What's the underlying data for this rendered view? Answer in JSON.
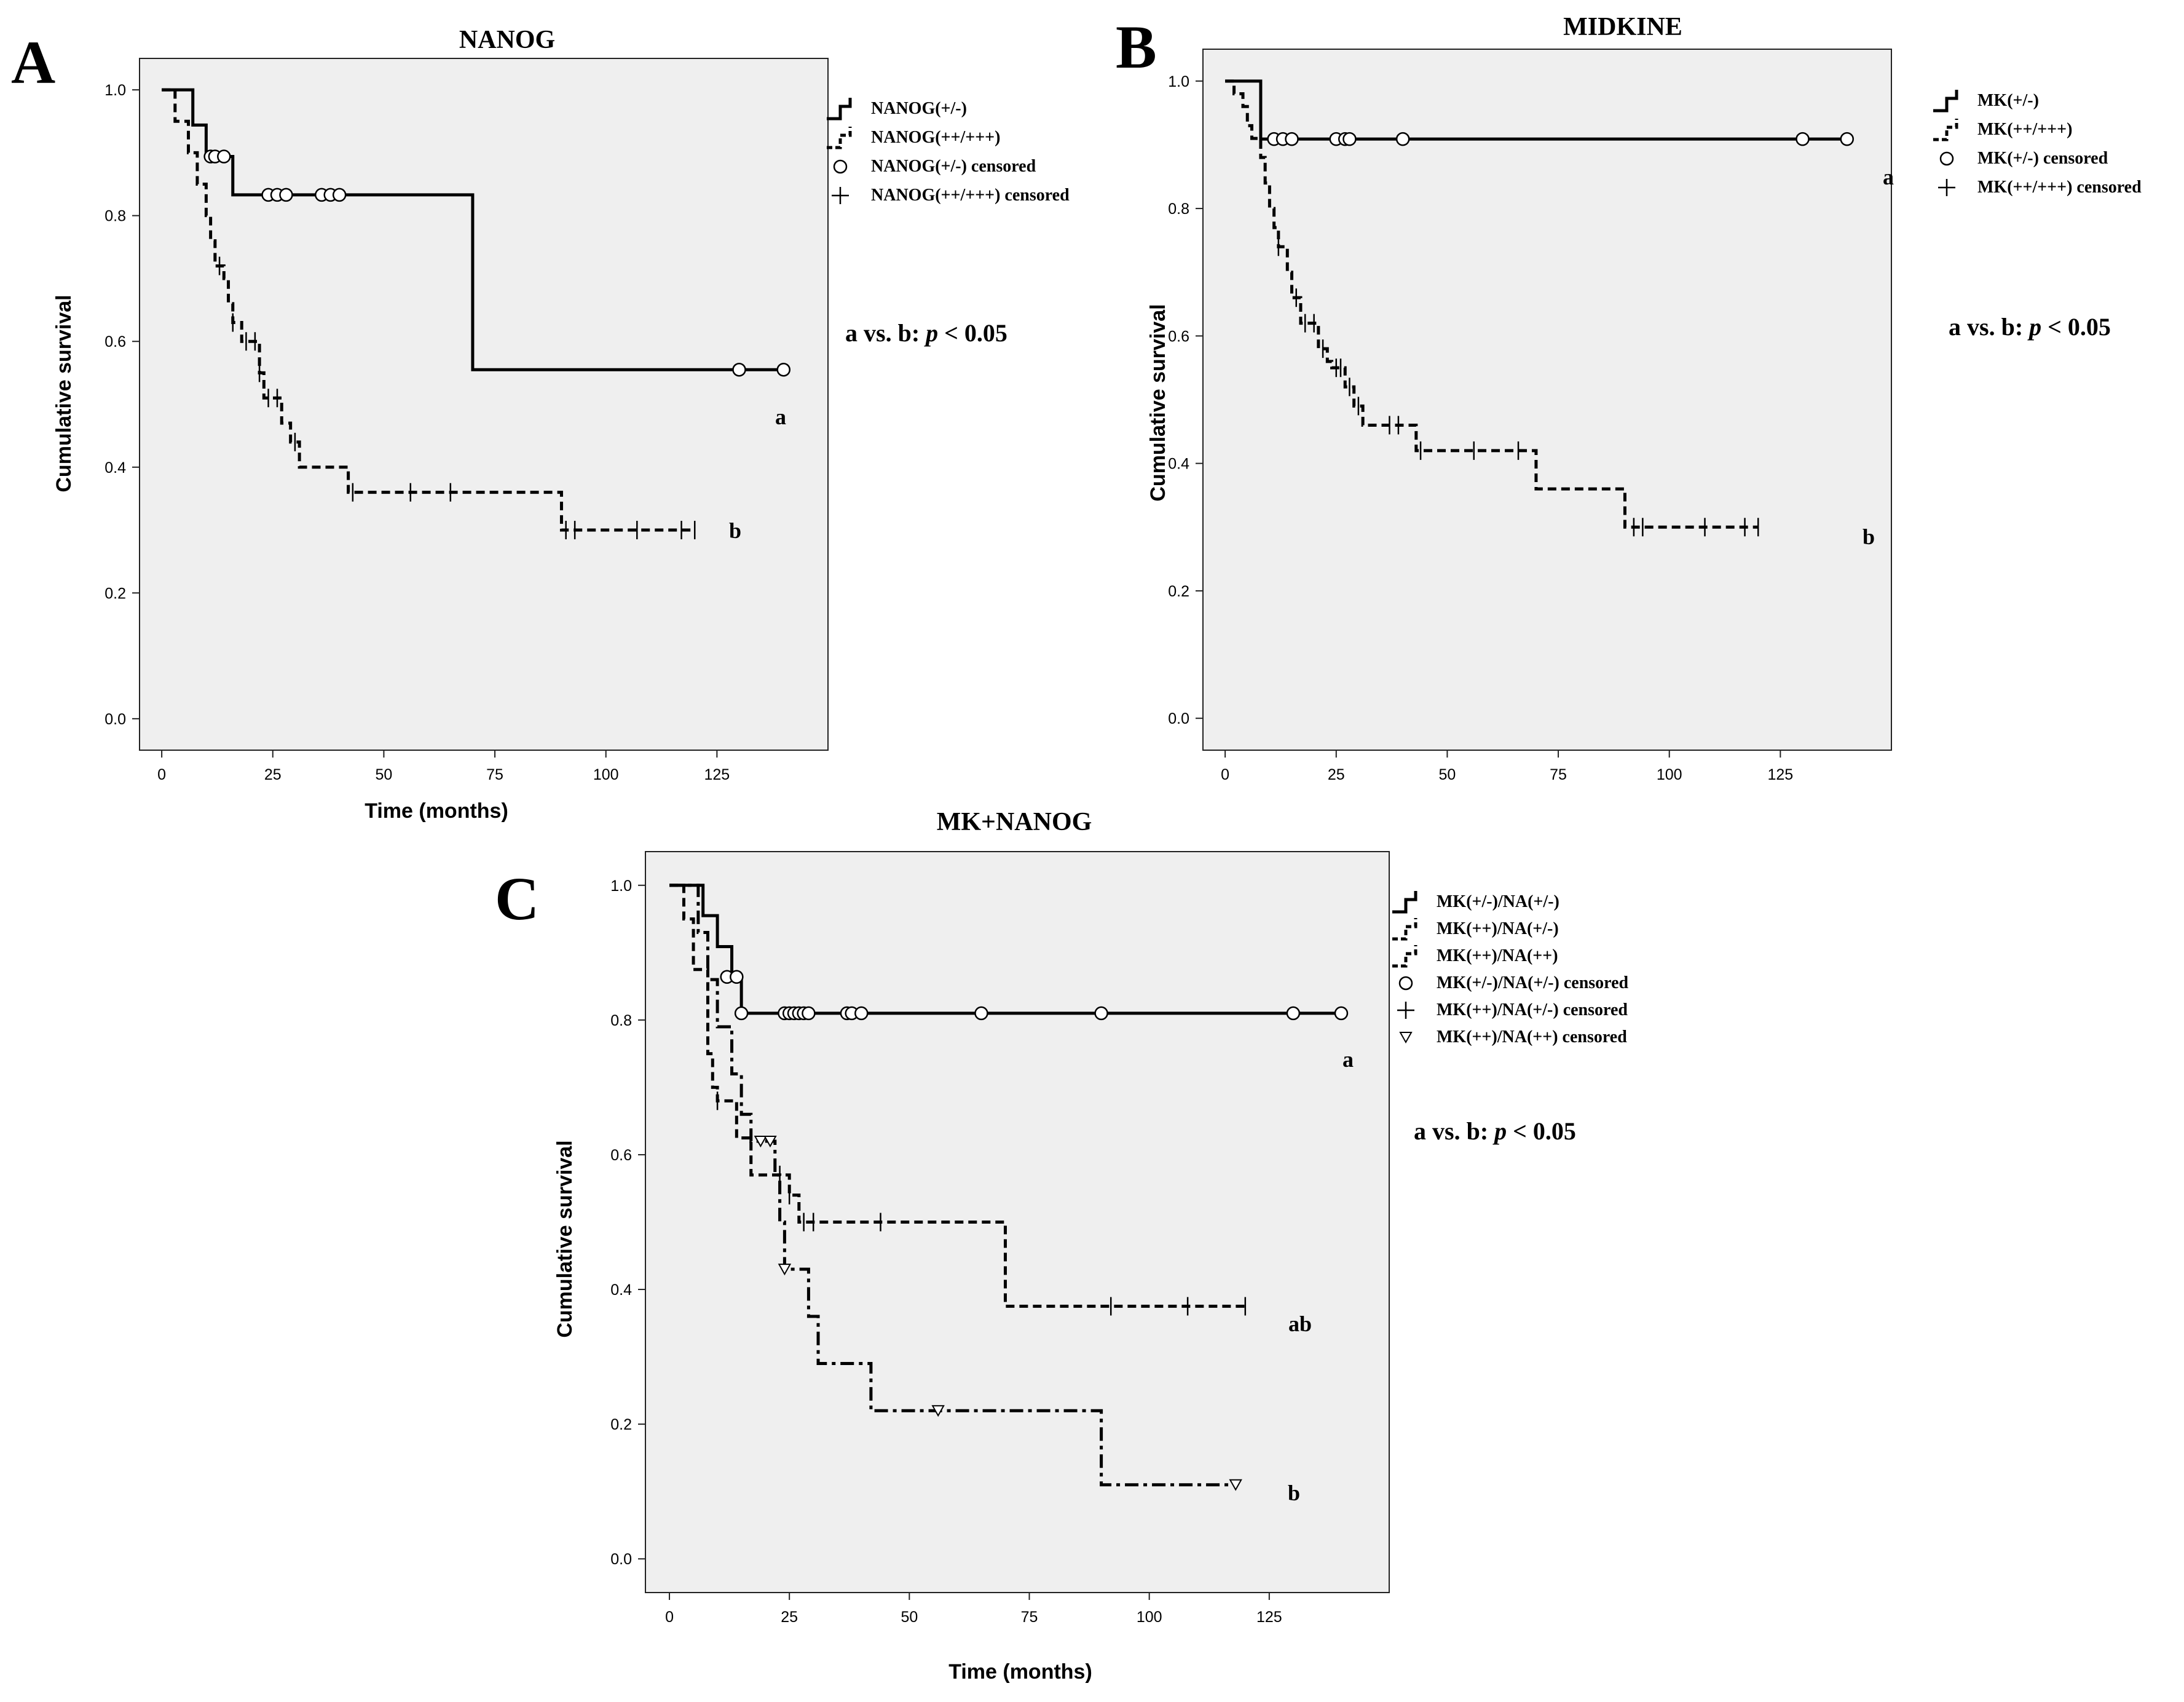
{
  "chart_data": [
    {
      "type": "line",
      "subtype": "kaplan-meier",
      "panel_letter": "A",
      "title": "NANOG",
      "xlabel": "Time (months)",
      "ylabel": "Cumulative survival",
      "xlim": [
        -5,
        150
      ],
      "ylim": [
        -0.05,
        1.05
      ],
      "x_ticks": [
        0,
        25,
        50,
        75,
        100,
        125
      ],
      "y_ticks": [
        0.0,
        0.2,
        0.4,
        0.6,
        0.8,
        1.0
      ],
      "x_tick_labels": [
        "0",
        "25",
        "50",
        "75",
        "100",
        "125"
      ],
      "y_tick_labels": [
        "0.0",
        "0.2",
        "0.4",
        "0.6",
        "0.8",
        "1.0"
      ],
      "legend_position": "outside-right-top",
      "legend": [
        "NANOG(+/-)",
        "NANOG(++/+++)",
        "NANOG(+/-) censored",
        "NANOG(++/+++) censored"
      ],
      "annotation": {
        "prefix": "a vs. b: ",
        "p": "p",
        "suffix": " < 0.05"
      },
      "series": [
        {
          "name": "NANOG(+/-)",
          "style": "solid",
          "marker": "circle",
          "label": "a",
          "steps": [
            [
              0,
              1.0
            ],
            [
              7,
              0.944
            ],
            [
              10,
              0.894
            ],
            [
              16,
              0.833
            ],
            [
              70,
              0.555
            ],
            [
              140,
              0.555
            ]
          ],
          "censored": [
            [
              11,
              0.894
            ],
            [
              12,
              0.894
            ],
            [
              14,
              0.894
            ],
            [
              24,
              0.833
            ],
            [
              26,
              0.833
            ],
            [
              28,
              0.833
            ],
            [
              36,
              0.833
            ],
            [
              38,
              0.833
            ],
            [
              40,
              0.833
            ],
            [
              130,
              0.555
            ],
            [
              140,
              0.555
            ]
          ]
        },
        {
          "name": "NANOG(++/+++)",
          "style": "dashed",
          "marker": "plus",
          "label": "b",
          "steps": [
            [
              0,
              1.0
            ],
            [
              3,
              0.95
            ],
            [
              6,
              0.9
            ],
            [
              8,
              0.85
            ],
            [
              10,
              0.8
            ],
            [
              11,
              0.76
            ],
            [
              12,
              0.72
            ],
            [
              14,
              0.7
            ],
            [
              15,
              0.66
            ],
            [
              16,
              0.63
            ],
            [
              18,
              0.6
            ],
            [
              22,
              0.55
            ],
            [
              23,
              0.51
            ],
            [
              27,
              0.47
            ],
            [
              29,
              0.44
            ],
            [
              31,
              0.4
            ],
            [
              42,
              0.36
            ],
            [
              90,
              0.3
            ],
            [
              120,
              0.3
            ]
          ],
          "censored": [
            [
              13,
              0.72
            ],
            [
              16,
              0.63
            ],
            [
              19,
              0.6
            ],
            [
              21,
              0.6
            ],
            [
              22,
              0.55
            ],
            [
              24,
              0.51
            ],
            [
              26,
              0.51
            ],
            [
              30,
              0.44
            ],
            [
              43,
              0.36
            ],
            [
              56,
              0.36
            ],
            [
              65,
              0.36
            ],
            [
              91,
              0.3
            ],
            [
              93,
              0.3
            ],
            [
              107,
              0.3
            ],
            [
              117,
              0.3
            ],
            [
              120,
              0.3
            ]
          ]
        }
      ]
    },
    {
      "type": "line",
      "subtype": "kaplan-meier",
      "panel_letter": "B",
      "title": "MIDKINE",
      "xlabel": "",
      "ylabel": "Cumulative survival",
      "xlim": [
        -5,
        150
      ],
      "ylim": [
        -0.05,
        1.05
      ],
      "x_ticks": [
        0,
        25,
        50,
        75,
        100,
        125
      ],
      "y_ticks": [
        0.0,
        0.2,
        0.4,
        0.6,
        0.8,
        1.0
      ],
      "x_tick_labels": [
        "0",
        "25",
        "50",
        "75",
        "100",
        "125"
      ],
      "y_tick_labels": [
        "0.0",
        "0.2",
        "0.4",
        "0.6",
        "0.8",
        "1.0"
      ],
      "legend_position": "outside-right-top",
      "legend": [
        "MK(+/-)",
        "MK(++/+++)",
        "MK(+/-) censored",
        "MK(++/+++) censored"
      ],
      "annotation": {
        "prefix": "a vs. b: ",
        "p": "p",
        "suffix": " < 0.05"
      },
      "series": [
        {
          "name": "MK(+/-)",
          "style": "solid",
          "marker": "circle",
          "label": "a",
          "steps": [
            [
              0,
              1.0
            ],
            [
              8,
              0.909
            ],
            [
              140,
              0.909
            ]
          ],
          "censored": [
            [
              11,
              0.909
            ],
            [
              13,
              0.909
            ],
            [
              15,
              0.909
            ],
            [
              25,
              0.909
            ],
            [
              27,
              0.909
            ],
            [
              28,
              0.909
            ],
            [
              40,
              0.909
            ],
            [
              130,
              0.909
            ],
            [
              140,
              0.909
            ]
          ]
        },
        {
          "name": "MK(++/+++)",
          "style": "dashed",
          "marker": "plus",
          "label": "b",
          "steps": [
            [
              0,
              1.0
            ],
            [
              2,
              0.98
            ],
            [
              4,
              0.96
            ],
            [
              5,
              0.93
            ],
            [
              6,
              0.91
            ],
            [
              8,
              0.88
            ],
            [
              9,
              0.84
            ],
            [
              10,
              0.8
            ],
            [
              11,
              0.77
            ],
            [
              12,
              0.74
            ],
            [
              14,
              0.7
            ],
            [
              15,
              0.66
            ],
            [
              17,
              0.62
            ],
            [
              21,
              0.58
            ],
            [
              23,
              0.56
            ],
            [
              24,
              0.55
            ],
            [
              27,
              0.52
            ],
            [
              29,
              0.49
            ],
            [
              31,
              0.46
            ],
            [
              43,
              0.42
            ],
            [
              70,
              0.36
            ],
            [
              90,
              0.3
            ],
            [
              120,
              0.3
            ]
          ],
          "censored": [
            [
              12,
              0.74
            ],
            [
              16,
              0.66
            ],
            [
              18,
              0.62
            ],
            [
              20,
              0.62
            ],
            [
              22,
              0.58
            ],
            [
              25,
              0.55
            ],
            [
              26,
              0.55
            ],
            [
              28,
              0.52
            ],
            [
              30,
              0.49
            ],
            [
              37,
              0.46
            ],
            [
              39,
              0.46
            ],
            [
              44,
              0.42
            ],
            [
              56,
              0.42
            ],
            [
              66,
              0.42
            ],
            [
              92,
              0.3
            ],
            [
              94,
              0.3
            ],
            [
              108,
              0.3
            ],
            [
              117,
              0.3
            ],
            [
              120,
              0.3
            ]
          ]
        }
      ]
    },
    {
      "type": "line",
      "subtype": "kaplan-meier",
      "panel_letter": "C",
      "title": "MK+NANOG",
      "xlabel": "Time (months)",
      "ylabel": "Cumulative survival",
      "xlim": [
        -5,
        150
      ],
      "ylim": [
        -0.05,
        1.05
      ],
      "x_ticks": [
        0,
        25,
        50,
        75,
        100,
        125
      ],
      "y_ticks": [
        0.0,
        0.2,
        0.4,
        0.6,
        0.8,
        1.0
      ],
      "x_tick_labels": [
        "0",
        "25",
        "50",
        "75",
        "100",
        "125"
      ],
      "y_tick_labels": [
        "0.0",
        "0.2",
        "0.4",
        "0.6",
        "0.8",
        "1.0"
      ],
      "legend_position": "outside-right-top",
      "legend": [
        "MK(+/-)/NA(+/-)",
        "MK(++)/NA(+/-)",
        "MK(++)/NA(++)",
        "MK(+/-)/NA(+/-) censored",
        "MK(++)/NA(+/-) censored",
        "MK(++)/NA(++) censored"
      ],
      "annotation": {
        "prefix": "a vs. b: ",
        "p": "p",
        "suffix": " < 0.05"
      },
      "series": [
        {
          "name": "MK(+/-)/NA(+/-)",
          "style": "solid",
          "marker": "circle",
          "label": "a",
          "steps": [
            [
              0,
              1.0
            ],
            [
              7,
              0.955
            ],
            [
              10,
              0.909
            ],
            [
              13,
              0.864
            ],
            [
              15,
              0.81
            ],
            [
              140,
              0.81
            ]
          ],
          "censored": [
            [
              12,
              0.864
            ],
            [
              14,
              0.864
            ],
            [
              15,
              0.81
            ],
            [
              24,
              0.81
            ],
            [
              25,
              0.81
            ],
            [
              26,
              0.81
            ],
            [
              27,
              0.81
            ],
            [
              28,
              0.81
            ],
            [
              29,
              0.81
            ],
            [
              37,
              0.81
            ],
            [
              38,
              0.81
            ],
            [
              40,
              0.81
            ],
            [
              65,
              0.81
            ],
            [
              90,
              0.81
            ],
            [
              130,
              0.81
            ],
            [
              140,
              0.81
            ]
          ]
        },
        {
          "name": "MK(++)/NA(+/-)",
          "style": "dashed",
          "marker": "plus",
          "label": "ab",
          "steps": [
            [
              0,
              1.0
            ],
            [
              3,
              0.95
            ],
            [
              5,
              0.875
            ],
            [
              8,
              0.75
            ],
            [
              9,
              0.7
            ],
            [
              10,
              0.68
            ],
            [
              14,
              0.625
            ],
            [
              17,
              0.57
            ],
            [
              22,
              0.57
            ],
            [
              25,
              0.54
            ],
            [
              27,
              0.5
            ],
            [
              70,
              0.375
            ],
            [
              120,
              0.375
            ]
          ],
          "censored": [
            [
              10,
              0.68
            ],
            [
              23,
              0.57
            ],
            [
              25,
              0.54
            ],
            [
              28,
              0.5
            ],
            [
              30,
              0.5
            ],
            [
              44,
              0.5
            ],
            [
              92,
              0.375
            ],
            [
              108,
              0.375
            ],
            [
              120,
              0.375
            ]
          ]
        },
        {
          "name": "MK(++)/NA(++)",
          "style": "dashdot",
          "marker": "triangle",
          "label": "b",
          "steps": [
            [
              0,
              1.0
            ],
            [
              6,
              0.93
            ],
            [
              8,
              0.86
            ],
            [
              10,
              0.79
            ],
            [
              13,
              0.72
            ],
            [
              15,
              0.66
            ],
            [
              17,
              0.62
            ],
            [
              22,
              0.57
            ],
            [
              23,
              0.5
            ],
            [
              24,
              0.43
            ],
            [
              29,
              0.36
            ],
            [
              31,
              0.29
            ],
            [
              42,
              0.22
            ],
            [
              90,
              0.11
            ],
            [
              118,
              0.11
            ]
          ],
          "censored": [
            [
              19,
              0.62
            ],
            [
              21,
              0.62
            ],
            [
              24,
              0.43
            ],
            [
              56,
              0.22
            ],
            [
              118,
              0.11
            ]
          ]
        }
      ]
    }
  ]
}
